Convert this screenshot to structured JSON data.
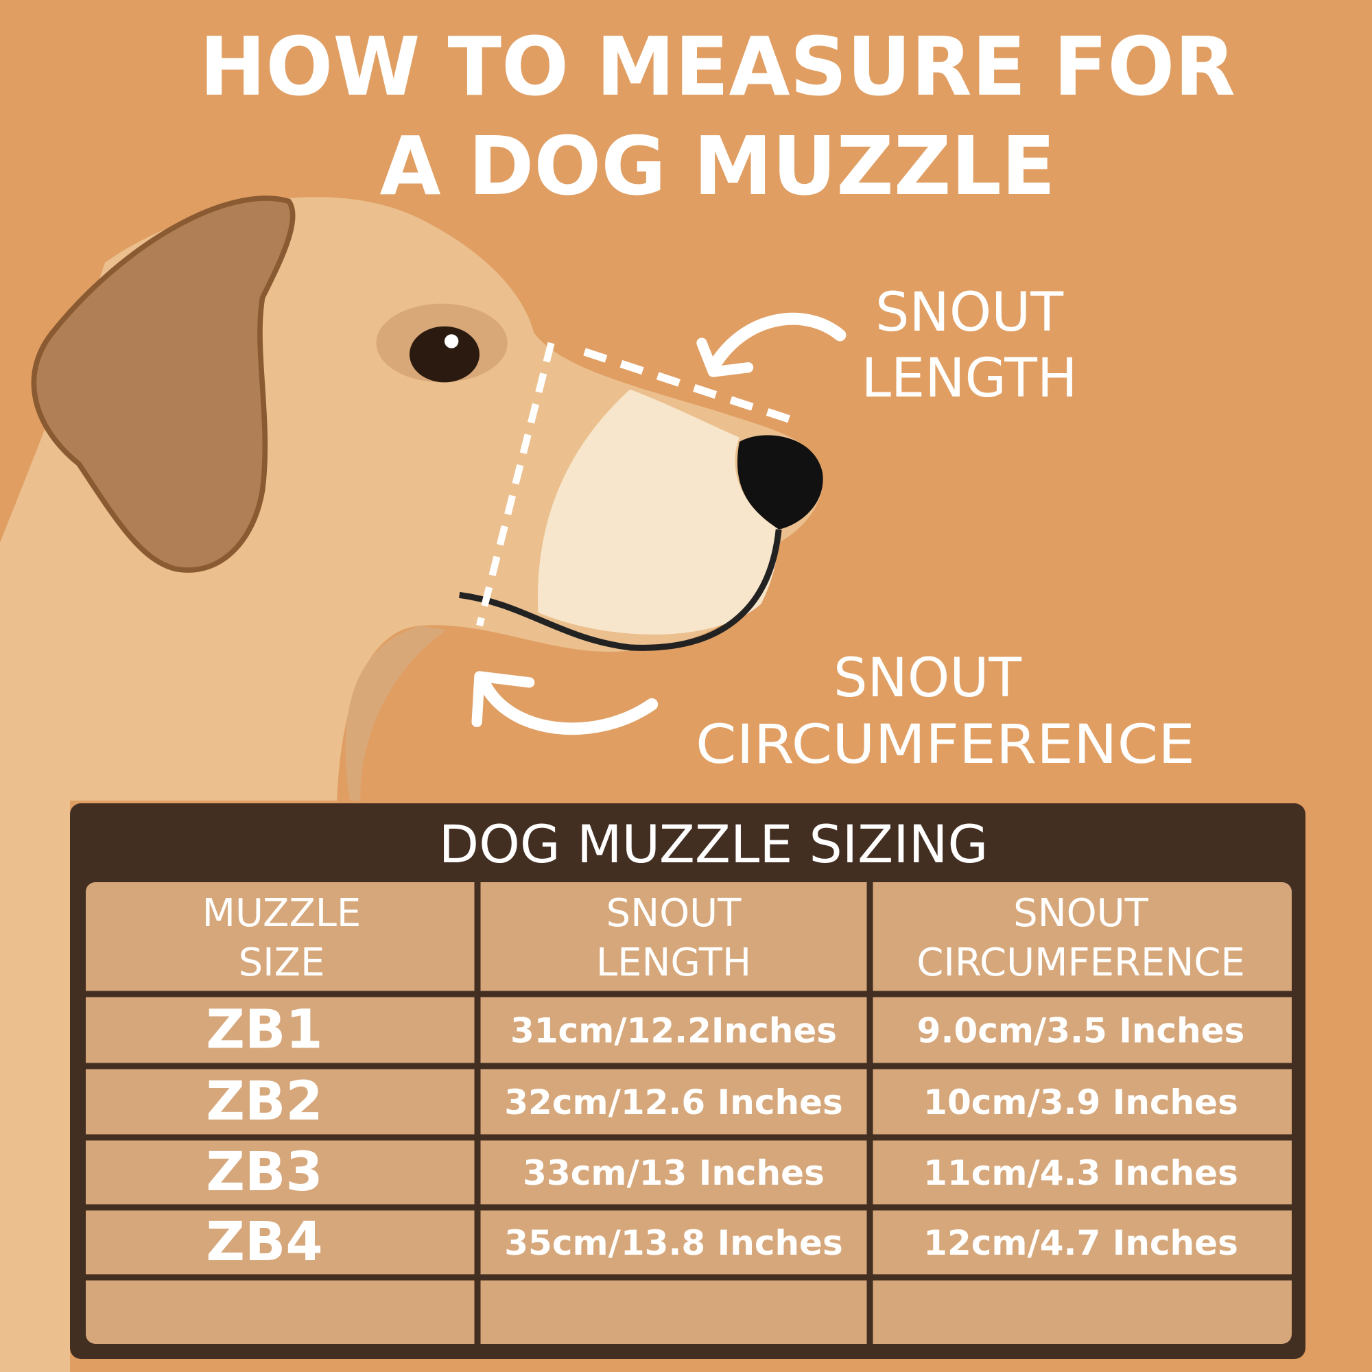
{
  "header": {
    "title_lines": [
      "HOW TO MEASURE FOR",
      "A DOG MUZZLE"
    ]
  },
  "labels": {
    "snout_length": [
      "SNOUT",
      "LENGTH"
    ],
    "snout_circumference": [
      "SNOUT",
      "CIRCUMFERENCE"
    ]
  },
  "table": {
    "title": "DOG MUZZLE SIZING",
    "columns": [
      [
        "MUZZLE",
        "SIZE"
      ],
      [
        "SNOUT",
        "LENGTH"
      ],
      [
        "SNOUT",
        "CIRCUMFERENCE"
      ]
    ],
    "rows": [
      [
        "ZB1",
        "31cm/12.2Inches",
        "9.0cm/3.5 Inches"
      ],
      [
        "ZB2",
        "32cm/12.6 Inches",
        "10cm/3.9 Inches"
      ],
      [
        "ZB3",
        "33cm/13 Inches",
        "11cm/4.3 Inches"
      ],
      [
        "ZB4",
        "35cm/13.8 Inches",
        "12cm/4.7 Inches"
      ]
    ]
  }
}
